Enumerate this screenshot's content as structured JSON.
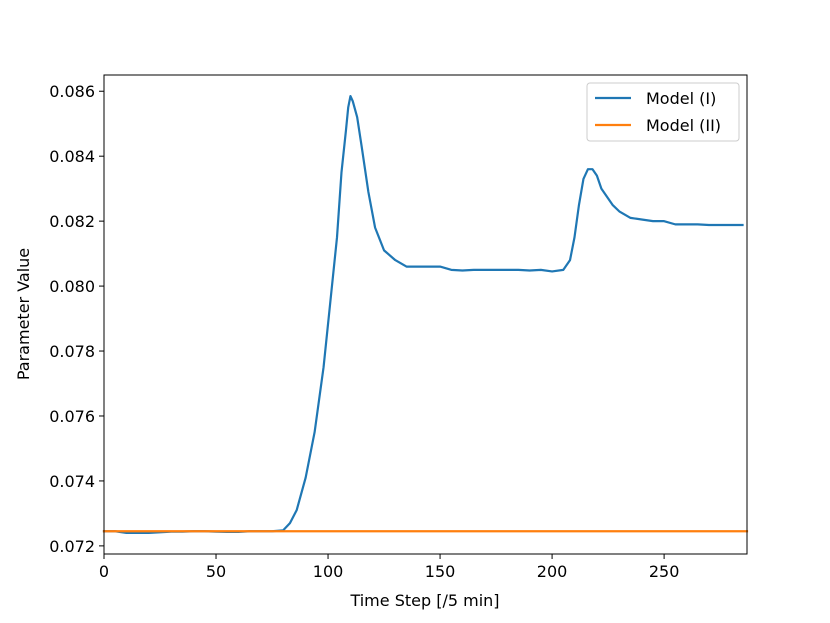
{
  "chart_data": {
    "type": "line",
    "title": "",
    "xlabel": "Time Step [/5 min]",
    "ylabel": "Parameter Value",
    "xlim": [
      0,
      287
    ],
    "ylim": [
      0.07175,
      0.0865
    ],
    "xticks": [
      0,
      50,
      100,
      150,
      200,
      250
    ],
    "xtick_labels": [
      "0",
      "50",
      "100",
      "150",
      "200",
      "250"
    ],
    "yticks": [
      0.072,
      0.074,
      0.076,
      0.078,
      0.08,
      0.082,
      0.084,
      0.086
    ],
    "ytick_labels": [
      "0.072",
      "0.074",
      "0.076",
      "0.078",
      "0.080",
      "0.082",
      "0.084",
      "0.086"
    ],
    "grid": false,
    "legend_position": "top-right",
    "series": [
      {
        "name": "Model (I)",
        "color": "#1f77b4",
        "x": [
          0,
          5,
          10,
          15,
          20,
          25,
          30,
          35,
          40,
          45,
          50,
          55,
          60,
          65,
          70,
          75,
          80,
          83,
          86,
          90,
          94,
          98,
          101,
          104,
          106,
          108,
          109,
          110,
          111,
          113,
          115,
          118,
          121,
          125,
          130,
          135,
          140,
          145,
          150,
          155,
          160,
          165,
          170,
          175,
          180,
          185,
          190,
          195,
          200,
          205,
          208,
          210,
          212,
          214,
          216,
          218,
          220,
          222,
          224,
          227,
          230,
          235,
          240,
          245,
          250,
          255,
          260,
          265,
          270,
          275,
          280,
          285
        ],
        "y": [
          0.07245,
          0.07245,
          0.0724,
          0.0724,
          0.0724,
          0.07242,
          0.07244,
          0.07244,
          0.07245,
          0.07245,
          0.07244,
          0.07243,
          0.07243,
          0.07245,
          0.07245,
          0.07245,
          0.07248,
          0.0727,
          0.0731,
          0.0741,
          0.0755,
          0.0775,
          0.0795,
          0.0815,
          0.0835,
          0.0848,
          0.0855,
          0.08585,
          0.0857,
          0.0852,
          0.0843,
          0.0829,
          0.0818,
          0.0811,
          0.0808,
          0.0806,
          0.0806,
          0.0806,
          0.0806,
          0.0805,
          0.08048,
          0.0805,
          0.0805,
          0.0805,
          0.0805,
          0.0805,
          0.08048,
          0.0805,
          0.08045,
          0.0805,
          0.0808,
          0.0815,
          0.0825,
          0.0833,
          0.0836,
          0.0836,
          0.0834,
          0.083,
          0.0828,
          0.0825,
          0.0823,
          0.0821,
          0.08205,
          0.082,
          0.082,
          0.0819,
          0.0819,
          0.0819,
          0.08188,
          0.08188,
          0.08188,
          0.08188
        ]
      },
      {
        "name": "Model (II)",
        "color": "#ff7f0e",
        "x": [
          0,
          287
        ],
        "y": [
          0.07245,
          0.07245
        ]
      }
    ]
  }
}
